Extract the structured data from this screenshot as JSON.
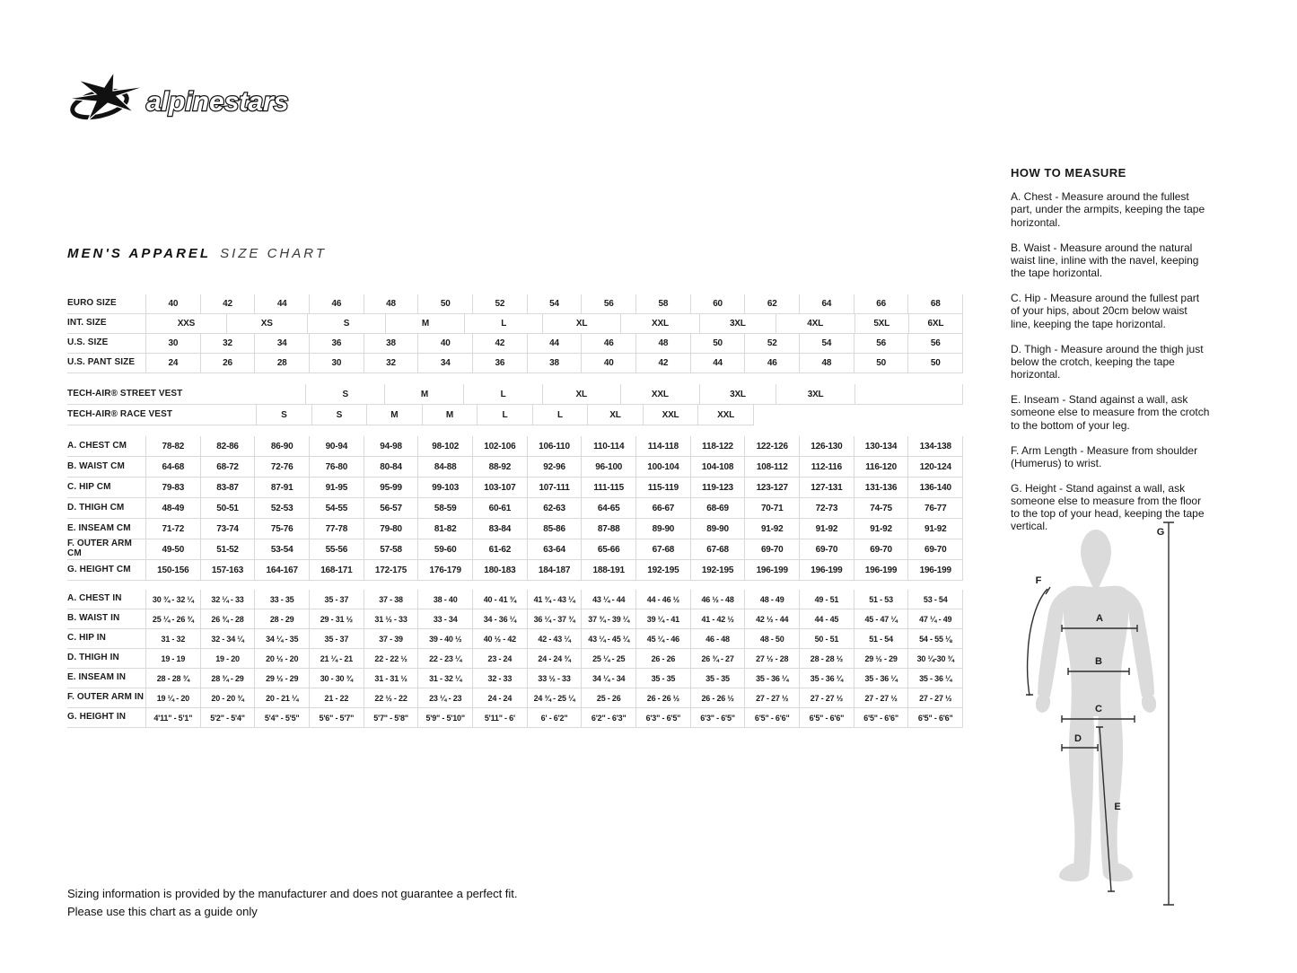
{
  "logo": {
    "brand": "alpinestars"
  },
  "title": {
    "main": "MEN'S APPAREL",
    "sub": "SIZE CHART"
  },
  "colors": {
    "grid": "#d9d9d9",
    "text": "#1c1c1c",
    "silhouette": "#dbdbdb"
  },
  "table": {
    "header_rows": [
      {
        "label": "EURO SIZE",
        "cells": [
          "40",
          "42",
          "44",
          "46",
          "48",
          "50",
          "52",
          "54",
          "56",
          "58",
          "60",
          "62",
          "64",
          "66",
          "68"
        ]
      },
      {
        "label": "INT. SIZE",
        "cells": [
          "XXS",
          "XS",
          "S",
          "M",
          "L",
          "XL",
          "XXL",
          "3XL",
          "4XL",
          "5XL",
          "6XL"
        ],
        "grows": [
          90,
          90,
          88,
          88,
          87,
          87,
          88,
          85,
          88,
          60,
          60
        ]
      },
      {
        "label": "U.S. SIZE",
        "cells": [
          "30",
          "32",
          "34",
          "36",
          "38",
          "40",
          "42",
          "44",
          "46",
          "48",
          "50",
          "52",
          "54",
          "56",
          "56"
        ]
      },
      {
        "label": "U.S. PANT SIZE",
        "cells": [
          "24",
          "26",
          "28",
          "30",
          "32",
          "34",
          "36",
          "38",
          "40",
          "42",
          "44",
          "46",
          "48",
          "50",
          "50"
        ]
      }
    ],
    "vest_rows": [
      {
        "label": "TECH-AIR® STREET VEST",
        "cells": [
          "S",
          "M",
          "L",
          "XL",
          "XXL",
          "3XL",
          "3XL",
          ""
        ],
        "grows": [
          88,
          88,
          87,
          87,
          88,
          85,
          88,
          120
        ],
        "lead": 180
      },
      {
        "label": "TECH-AIR® RACE VEST",
        "cells": [
          "S",
          "S",
          "M",
          "M",
          "L",
          "L",
          "XL",
          "XXL",
          "XXL"
        ],
        "lead": 124,
        "tail": 235
      }
    ],
    "cm_rows": [
      {
        "label": "A. CHEST CM",
        "cells": [
          "78-82",
          "82-86",
          "86-90",
          "90-94",
          "94-98",
          "98-102",
          "102-106",
          "106-110",
          "110-114",
          "114-118",
          "118-122",
          "122-126",
          "126-130",
          "130-134",
          "134-138"
        ]
      },
      {
        "label": "B. WAIST CM",
        "cells": [
          "64-68",
          "68-72",
          "72-76",
          "76-80",
          "80-84",
          "84-88",
          "88-92",
          "92-96",
          "96-100",
          "100-104",
          "104-108",
          "108-112",
          "112-116",
          "116-120",
          "120-124"
        ]
      },
      {
        "label": "C. HIP CM",
        "cells": [
          "79-83",
          "83-87",
          "87-91",
          "91-95",
          "95-99",
          "99-103",
          "103-107",
          "107-111",
          "111-115",
          "115-119",
          "119-123",
          "123-127",
          "127-131",
          "131-136",
          "136-140"
        ]
      },
      {
        "label": "D. THIGH CM",
        "cells": [
          "48-49",
          "50-51",
          "52-53",
          "54-55",
          "56-57",
          "58-59",
          "60-61",
          "62-63",
          "64-65",
          "66-67",
          "68-69",
          "70-71",
          "72-73",
          "74-75",
          "76-77"
        ]
      },
      {
        "label": "E. INSEAM CM",
        "cells": [
          "71-72",
          "73-74",
          "75-76",
          "77-78",
          "79-80",
          "81-82",
          "83-84",
          "85-86",
          "87-88",
          "89-90",
          "89-90",
          "91-92",
          "91-92",
          "91-92",
          "91-92"
        ]
      },
      {
        "label": "F. OUTER ARM CM",
        "cells": [
          "49-50",
          "51-52",
          "53-54",
          "55-56",
          "57-58",
          "59-60",
          "61-62",
          "63-64",
          "65-66",
          "67-68",
          "67-68",
          "69-70",
          "69-70",
          "69-70",
          "69-70"
        ]
      },
      {
        "label": "G. HEIGHT CM",
        "cells": [
          "150-156",
          "157-163",
          "164-167",
          "168-171",
          "172-175",
          "176-179",
          "180-183",
          "184-187",
          "188-191",
          "192-195",
          "192-195",
          "196-199",
          "196-199",
          "196-199",
          "196-199"
        ]
      }
    ],
    "in_rows": [
      {
        "label": "A. CHEST IN",
        "cells": [
          "30 ¾ - 32 ¼",
          "32 ¼ - 33",
          "33 - 35",
          "35 - 37",
          "37 - 38",
          "38 - 40",
          "40 - 41 ¾",
          "41 ¾ - 43 ¼",
          "43 ¼ - 44",
          "44 - 46 ½",
          "46 ½ - 48",
          "48 - 49",
          "49 - 51",
          "51 - 53",
          "53 - 54"
        ]
      },
      {
        "label": "B. WAIST IN",
        "cells": [
          "25 ¼ - 26 ¾",
          "26 ¾ - 28",
          "28 - 29",
          "29 - 31 ½",
          "31 ½ - 33",
          "33 - 34",
          "34 - 36 ¼",
          "36 ¼ - 37 ¾",
          "37 ¾ - 39 ¼",
          "39 ¼ - 41",
          "41 - 42 ½",
          "42 ½ - 44",
          "44 - 45",
          "45 - 47 ¼",
          "47 ¼ - 49"
        ]
      },
      {
        "label": "C. HIP IN",
        "cells": [
          "31 - 32",
          "32 - 34 ¼",
          "34 ¼ - 35",
          "35 - 37",
          "37 - 39",
          "39 - 40 ½",
          "40 ½ - 42",
          "42 - 43 ¼",
          "43 ¼ - 45 ¼",
          "45 ¼ - 46",
          "46 - 48",
          "48 - 50",
          "50 - 51",
          "51 - 54",
          "54 - 55 ⅛"
        ]
      },
      {
        "label": "D. THIGH IN",
        "cells": [
          "19 - 19",
          "19 - 20",
          "20 ½ - 20",
          "21 ¼ - 21",
          "22 - 22 ½",
          "22 - 23 ¼",
          "23 - 24",
          "24 - 24 ¾",
          "25 ¼ - 25",
          "26 - 26",
          "26 ¾ - 27",
          "27 ½ - 28",
          "28 - 28 ½",
          "29 ½ - 29",
          "30 ¼-30 ¾"
        ]
      },
      {
        "label": "E. INSEAM IN",
        "cells": [
          "28 - 28 ¾",
          "28 ¾ - 29",
          "29 ½ - 29",
          "30 - 30 ¾",
          "31 - 31 ½",
          "31 - 32 ¼",
          "32 - 33",
          "33 ½ - 33",
          "34 ¼ - 34",
          "35 - 35",
          "35 - 35",
          "35 - 36 ¼",
          "35 - 36 ¼",
          "35 - 36 ¼",
          "35 - 36 ¼"
        ]
      },
      {
        "label": "F. OUTER ARM IN",
        "cells": [
          "19 ¼ - 20",
          "20 - 20 ¾",
          "20 - 21 ¼",
          "21 - 22",
          "22 ½ - 22",
          "23 ¼ - 23",
          "24 - 24",
          "24 ¾ - 25 ¼",
          "25 - 26",
          "26 - 26 ½",
          "26 - 26 ½",
          "27 - 27 ½",
          "27 - 27 ½",
          "27 - 27 ½",
          "27 - 27 ½"
        ]
      },
      {
        "label": "G. HEIGHT IN",
        "cells": [
          "4'11\" - 5'1\"",
          "5'2\" - 5'4\"",
          "5'4\" - 5'5\"",
          "5'6\" - 5'7\"",
          "5'7\" - 5'8\"",
          "5'9\" - 5'10\"",
          "5'11\" - 6'",
          "6' - 6'2\"",
          "6'2\" - 6'3\"",
          "6'3\" - 6'5\"",
          "6'3\" - 6'5\"",
          "6'5\" - 6'6\"",
          "6'5\" - 6'6\"",
          "6'5\" - 6'6\"",
          "6'5\" - 6'6\""
        ]
      }
    ]
  },
  "how_to_measure": {
    "heading": "HOW TO MEASURE",
    "paragraphs": [
      "A. Chest - Measure around the fullest part, under the armpits, keeping the tape horizontal.",
      "B. Waist - Measure around the natural waist line, inline with the navel, keeping the tape horizontal.",
      "C. Hip - Measure around the fullest part of your hips, about 20cm below waist line, keeping the tape horizontal.",
      "D. Thigh - Measure around the thigh just below the crotch, keeping the tape horizontal.",
      "E. Inseam - Stand against a wall, ask someone else to measure from the crotch to the bottom of your leg.",
      "F. Arm Length - Measure from shoulder (Humerus) to wrist.",
      "G. Height - Stand against a wall, ask someone else to measure from the floor to the top of your head, keeping the tape vertical."
    ]
  },
  "figure": {
    "labels": {
      "a": "A",
      "b": "B",
      "c": "C",
      "d": "D",
      "e": "E",
      "f": "F",
      "g": "G"
    }
  },
  "disclaimer": {
    "line1": "Sizing information is provided by the manufacturer and does not guarantee a perfect fit.",
    "line2": "Please use this chart as a guide only"
  }
}
